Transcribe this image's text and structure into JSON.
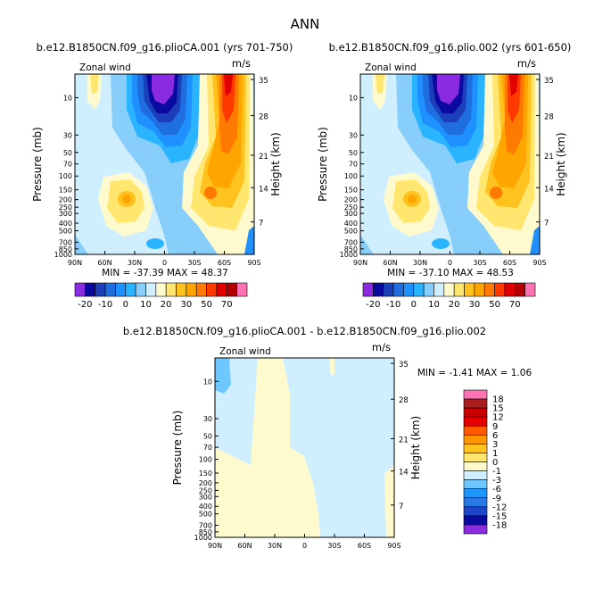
{
  "page_title": "ANN",
  "colors": {
    "scale": [
      "#8a2be2",
      "#0a0aa0",
      "#1b3fb8",
      "#1e6ee0",
      "#1e90ff",
      "#2ab4ff",
      "#87cefa",
      "#cfefff",
      "#fffacd",
      "#ffe66e",
      "#ffc21f",
      "#ffa500",
      "#ff7a00",
      "#ff3a00",
      "#e00000",
      "#b40000",
      "#ff73b4"
    ],
    "diff_scale": [
      "#8a2be2",
      "#0a0aa0",
      "#1e46c8",
      "#2878e6",
      "#1e96ff",
      "#6ec8ff",
      "#cfefff",
      "#fffacd",
      "#ffe66e",
      "#ffc21f",
      "#ff9600",
      "#ff5a00",
      "#e60000",
      "#c80000",
      "#aa1e1e",
      "#ff73b4"
    ]
  },
  "chart_data": [
    {
      "type": "contour",
      "name": "panel-1",
      "title": "b.e12.B1850CN.f09_g16.plioCA.001 (yrs 701-750)",
      "left_label": "Zonal wind",
      "right_label": "m/s",
      "xlabel": "",
      "ylabel": "Pressure (mb)",
      "y2label": "Height (km)",
      "x_ticks": [
        "90N",
        "60N",
        "30N",
        "0",
        "30S",
        "60S",
        "90S"
      ],
      "y_ticks": [
        "10",
        "30",
        "50",
        "70",
        "100",
        "150",
        "200",
        "250",
        "300",
        "400",
        "500",
        "700",
        "850",
        "1000"
      ],
      "y2_ticks": [
        "35",
        "28",
        "21",
        "14",
        "7"
      ],
      "ylim_mb": [
        1000,
        5
      ],
      "stats": "MIN = -37.39  MAX =  48.37",
      "min": -37.39,
      "max": 48.37,
      "contour_levels": [
        -20,
        -10,
        0,
        10,
        20,
        30,
        50,
        70
      ]
    },
    {
      "type": "contour",
      "name": "panel-2",
      "title": "b.e12.B1850CN.f09_g16.plio.002 (yrs 601-650)",
      "left_label": "Zonal wind",
      "right_label": "m/s",
      "xlabel": "",
      "ylabel": "Pressure (mb)",
      "y2label": "Height (km)",
      "x_ticks": [
        "90N",
        "60N",
        "30N",
        "0",
        "30S",
        "60S",
        "90S"
      ],
      "y_ticks": [
        "10",
        "30",
        "50",
        "70",
        "100",
        "150",
        "200",
        "250",
        "300",
        "400",
        "500",
        "700",
        "850",
        "1000"
      ],
      "y2_ticks": [
        "35",
        "28",
        "21",
        "14",
        "7"
      ],
      "ylim_mb": [
        1000,
        5
      ],
      "stats": "MIN = -37.10  MAX =  48.53",
      "min": -37.1,
      "max": 48.53,
      "contour_levels": [
        -20,
        -10,
        0,
        10,
        20,
        30,
        50,
        70
      ]
    },
    {
      "type": "contour",
      "name": "panel-diff",
      "title": "b.e12.B1850CN.f09_g16.plioCA.001 - b.e12.B1850CN.f09_g16.plio.002",
      "left_label": "Zonal wind",
      "right_label": "m/s",
      "xlabel": "",
      "ylabel": "Pressure (mb)",
      "y2label": "Height (km)",
      "x_ticks": [
        "90N",
        "60N",
        "30N",
        "0",
        "30S",
        "60S",
        "90S"
      ],
      "y_ticks": [
        "10",
        "30",
        "50",
        "70",
        "100",
        "150",
        "200",
        "250",
        "300",
        "400",
        "500",
        "700",
        "850",
        "1000"
      ],
      "y2_ticks": [
        "35",
        "28",
        "21",
        "14",
        "7"
      ],
      "ylim_mb": [
        1000,
        5
      ],
      "stats": "MIN =  -1.41  MAX =   1.06",
      "min": -1.41,
      "max": 1.06,
      "contour_levels": [
        18,
        15,
        12,
        9,
        6,
        3,
        1,
        0,
        -1,
        -3,
        -6,
        -9,
        -12,
        -15,
        -18
      ]
    }
  ],
  "colorbar": {
    "labels": [
      "-20",
      "-10",
      "0",
      "10",
      "20",
      "30",
      "50",
      "70"
    ]
  },
  "diff_colorbar": {
    "labels": [
      "18",
      "15",
      "12",
      "9",
      "6",
      "3",
      "1",
      "0",
      "-1",
      "-3",
      "-6",
      "-9",
      "-12",
      "-15",
      "-18"
    ]
  }
}
